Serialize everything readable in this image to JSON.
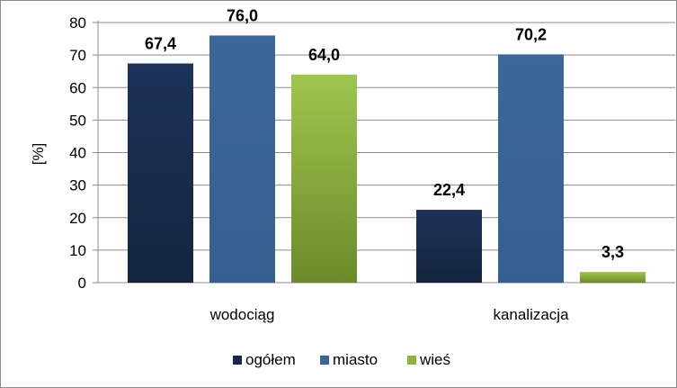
{
  "chart_data": {
    "type": "bar",
    "categories": [
      "wodociąg",
      "kanalizacja"
    ],
    "series": [
      {
        "name": "ogółem",
        "values": [
          67.4,
          22.4
        ],
        "labels": [
          "67,4",
          "22,4"
        ],
        "color": "#15294a",
        "color_light": "#1f375e"
      },
      {
        "name": "miasto",
        "values": [
          76.0,
          70.2
        ],
        "labels": [
          "76,0",
          "70,2"
        ],
        "color": "#3a6496",
        "color_light": "#3a6496"
      },
      {
        "name": "wieś",
        "values": [
          64.0,
          3.3
        ],
        "labels": [
          "64,0",
          "3,3"
        ],
        "color": "#9ac04a",
        "color_dark": "#6f8d2c"
      }
    ],
    "title": "",
    "xlabel": "",
    "ylabel": "[%]",
    "ylim": [
      0,
      80
    ],
    "yticks": [
      0,
      10,
      20,
      30,
      40,
      50,
      60,
      70,
      80
    ],
    "grid": true,
    "legend": "bottom"
  }
}
